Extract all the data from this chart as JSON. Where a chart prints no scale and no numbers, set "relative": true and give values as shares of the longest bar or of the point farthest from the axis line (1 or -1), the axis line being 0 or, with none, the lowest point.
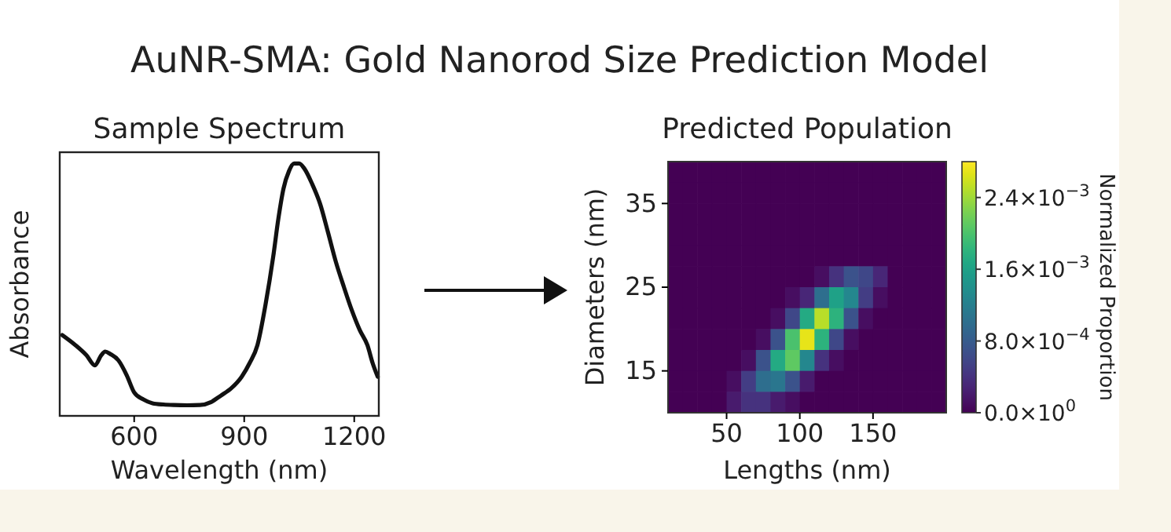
{
  "chart_data": [
    {
      "type": "other",
      "title": "AuNR-SMA: Gold Nanorod Size Prediction Model"
    },
    {
      "type": "line",
      "title": "Sample Spectrum",
      "xlabel": "Wavelength (nm)",
      "ylabel": "Absorbance",
      "relative": true,
      "tick_labels": "x",
      "color": "#111111",
      "x": [
        404,
        440,
        470,
        493,
        510,
        521,
        535,
        557,
        580,
        600,
        625,
        650,
        680,
        707,
        745,
        779,
        810,
        836,
        865,
        893,
        915,
        936,
        958,
        979,
        993,
        1007,
        1022,
        1036,
        1050,
        1064,
        1085,
        1107,
        1128,
        1150,
        1172,
        1193,
        1215,
        1236,
        1250,
        1264
      ],
      "values": [
        0.32,
        0.28,
        0.24,
        0.2,
        0.24,
        0.255,
        0.245,
        0.22,
        0.16,
        0.093,
        0.065,
        0.05,
        0.045,
        0.043,
        0.042,
        0.043,
        0.055,
        0.08,
        0.11,
        0.155,
        0.21,
        0.28,
        0.44,
        0.63,
        0.78,
        0.9,
        0.97,
        1.0,
        1.0,
        0.98,
        0.92,
        0.84,
        0.73,
        0.61,
        0.51,
        0.42,
        0.34,
        0.28,
        0.21,
        0.155
      ],
      "xlim": [
        397,
        1267
      ],
      "xticks": [
        600,
        900,
        1200
      ]
    },
    {
      "type": "heatmap",
      "title": "Predicted Population",
      "xlabel": "Lengths (nm)",
      "ylabel": "Diameters (nm)",
      "clabel": "Normalized Proportion",
      "x": [
        15,
        25,
        35,
        45,
        55,
        65,
        75,
        85,
        95,
        105,
        115,
        125,
        135,
        145,
        155,
        165,
        175,
        185,
        195
      ],
      "y": [
        38.75,
        36.25,
        33.75,
        31.25,
        28.75,
        26.25,
        23.75,
        21.25,
        18.75,
        16.25,
        13.75,
        11.25
      ],
      "xlim": [
        10,
        200
      ],
      "ylim": [
        10,
        40
      ],
      "xticks": [
        50,
        100,
        150
      ],
      "yticks": [
        15,
        25,
        35
      ],
      "clim": [
        0,
        0.0028
      ],
      "cticks": [
        {
          "value": 0,
          "label": "0.0×10$^{0}$"
        },
        {
          "value": 0.0008,
          "label": "8.0×10$^{−4}$"
        },
        {
          "value": 0.0016,
          "label": "1.6×10$^{−3}$"
        },
        {
          "value": 0.0024,
          "label": "2.4×10$^{−3}$"
        }
      ],
      "cells": [
        [
          0,
          0,
          0,
          0,
          0,
          0,
          0,
          0,
          0,
          0,
          0,
          0,
          0,
          0,
          0,
          0,
          0,
          0,
          0
        ],
        [
          0,
          0,
          0,
          0,
          0,
          0,
          0,
          0,
          0,
          0,
          0,
          0,
          0,
          0,
          0,
          0,
          0,
          0,
          0
        ],
        [
          0,
          0,
          0,
          0,
          0,
          0,
          0,
          0,
          0,
          0,
          0,
          0,
          0,
          0,
          0,
          0,
          0,
          0,
          0
        ],
        [
          0,
          0,
          0,
          0,
          0,
          0,
          0,
          0,
          0,
          0,
          0,
          0,
          0,
          0,
          0,
          0,
          0,
          0,
          0
        ],
        [
          0,
          0,
          0,
          0,
          0,
          0,
          0,
          0,
          0,
          0,
          0,
          0,
          0,
          0,
          0,
          0,
          0,
          0,
          0
        ],
        [
          0,
          0,
          0,
          0,
          0,
          0,
          0,
          0,
          0,
          0,
          0.0001,
          0.0004,
          0.0007,
          0.0006,
          0.0003,
          0,
          0,
          0,
          0
        ],
        [
          0,
          0,
          0,
          0,
          0,
          0,
          0,
          0,
          0.0001,
          0.0003,
          0.001,
          0.0016,
          0.0013,
          0.0005,
          0.0001,
          0,
          0,
          0,
          0
        ],
        [
          0,
          0,
          0,
          0,
          0,
          0,
          0,
          0.0001,
          0.0006,
          0.0017,
          0.0025,
          0.0018,
          0.0007,
          0.0001,
          0,
          0,
          0,
          0,
          0
        ],
        [
          0,
          0,
          0,
          0,
          0,
          0,
          0.0001,
          0.0007,
          0.002,
          0.0027,
          0.0018,
          0.0006,
          0.0001,
          0,
          0,
          0,
          0,
          0,
          0
        ],
        [
          0,
          0,
          0,
          0,
          0,
          0.0001,
          0.0007,
          0.0017,
          0.0021,
          0.0013,
          0.0004,
          0.0001,
          0,
          0,
          0,
          0,
          0,
          0,
          0
        ],
        [
          0,
          0,
          0,
          0,
          0.0001,
          0.0005,
          0.001,
          0.0011,
          0.0007,
          0.0002,
          0,
          0,
          0,
          0,
          0,
          0,
          0,
          0,
          0
        ],
        [
          0,
          0,
          0,
          0,
          0.0002,
          0.0004,
          0.0004,
          0.0002,
          0.0001,
          0,
          0,
          0,
          0,
          0,
          0,
          0,
          0,
          0,
          0
        ]
      ]
    }
  ]
}
